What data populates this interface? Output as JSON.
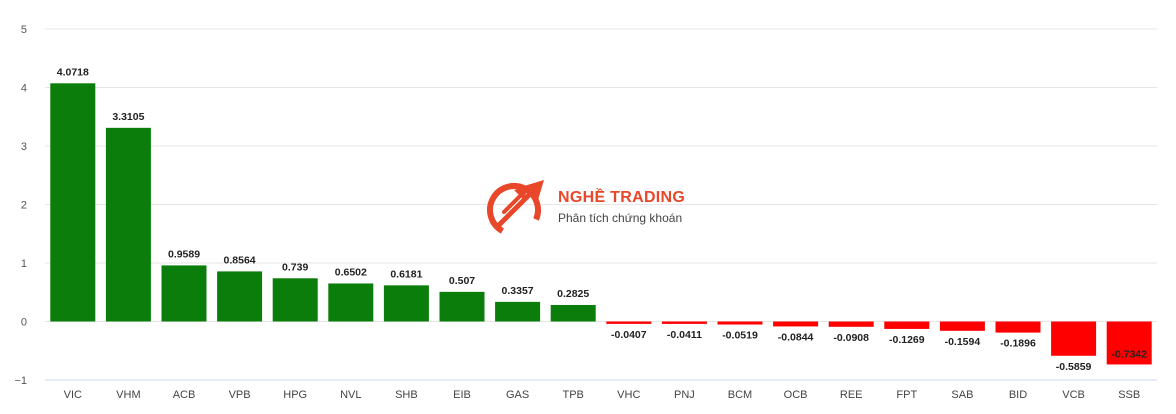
{
  "chart_data": {
    "type": "bar",
    "categories": [
      "VIC",
      "VHM",
      "ACB",
      "VPB",
      "HPG",
      "NVL",
      "SHB",
      "EIB",
      "GAS",
      "TPB",
      "VHC",
      "PNJ",
      "BCM",
      "OCB",
      "REE",
      "FPT",
      "SAB",
      "BID",
      "VCB",
      "SSB"
    ],
    "values": [
      4.0718,
      3.3105,
      0.9589,
      0.8564,
      0.739,
      0.6502,
      0.6181,
      0.507,
      0.3357,
      0.2825,
      -0.0407,
      -0.0411,
      -0.0519,
      -0.0844,
      -0.0908,
      -0.1269,
      -0.1594,
      -0.1896,
      -0.5859,
      -0.7342
    ],
    "value_labels": [
      "4.0718",
      "3.3105",
      "0.9589",
      "0.8564",
      "0.739",
      "0.6502",
      "0.6181",
      "0.507",
      "0.3357",
      "0.2825",
      "-0.0407",
      "-0.0411",
      "-0.0519",
      "-0.0844",
      "-0.0908",
      "-0.1269",
      "-0.1594",
      "-0.1896",
      "-0.5859",
      "-0.7342"
    ],
    "yticks": [
      "5",
      "4",
      "3",
      "2",
      "1",
      "0",
      "−1"
    ],
    "ylim": [
      -1,
      5
    ],
    "grid": true,
    "colors": {
      "positive": "#0b7d0b",
      "negative": "#ff0000",
      "grid": "#e6e6e6"
    }
  },
  "watermark": {
    "brand": "NGHỀ TRADING",
    "tagline": "Phân tích chứng khoán",
    "icon": "trading-arrows-logo",
    "color": "#e8472a"
  }
}
